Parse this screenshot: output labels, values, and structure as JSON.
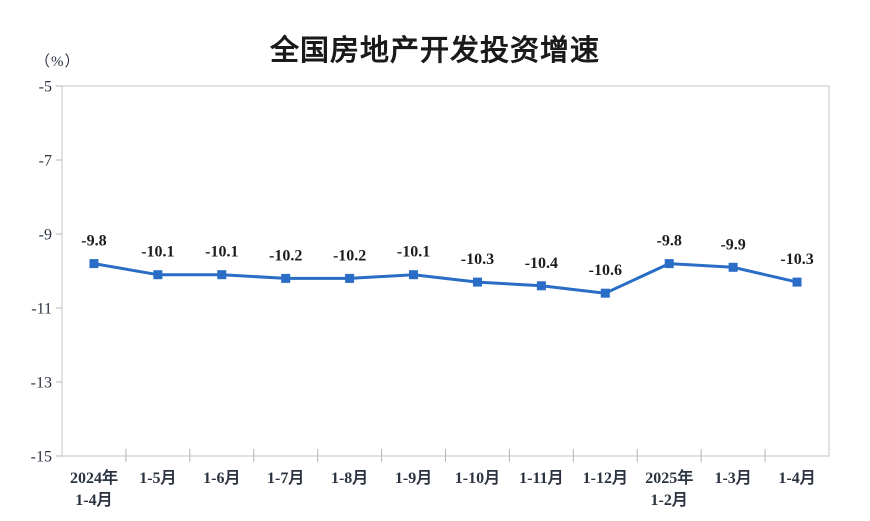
{
  "chart_data": {
    "type": "line",
    "title": "全国房地产开发投资增速",
    "unit_label": "（%）",
    "categories": [
      "2024年\n1-4月",
      "1-5月",
      "1-6月",
      "1-7月",
      "1-8月",
      "1-9月",
      "1-10月",
      "1-11月",
      "1-12月",
      "2025年\n1-2月",
      "1-3月",
      "1-4月"
    ],
    "values": [
      -9.8,
      -10.1,
      -10.1,
      -10.2,
      -10.2,
      -10.1,
      -10.3,
      -10.4,
      -10.6,
      -9.8,
      -9.9,
      -10.3
    ],
    "data_labels": [
      "-9.8",
      "-10.1",
      "-10.1",
      "-10.2",
      "-10.2",
      "-10.1",
      "-10.3",
      "-10.4",
      "-10.6",
      "-9.8",
      "-9.9",
      "-10.3"
    ],
    "y_ticks": [
      "-5",
      "-7",
      "-9",
      "-11",
      "-13",
      "-15"
    ],
    "y_tick_values": [
      -5,
      -7,
      -9,
      -11,
      -13,
      -15
    ],
    "ylim": [
      -15,
      -5
    ],
    "grid": false,
    "legend": "none",
    "colors": {
      "line": "#2a6dc6",
      "marker": "#2a6dc6",
      "title_text": "#1a1a1a",
      "axis_text": "#2b3340",
      "data_label_text": "#1c1c1c",
      "plot_border": "#c6c6c6",
      "tick": "#b3b3b3",
      "background": "#ffffff"
    }
  }
}
